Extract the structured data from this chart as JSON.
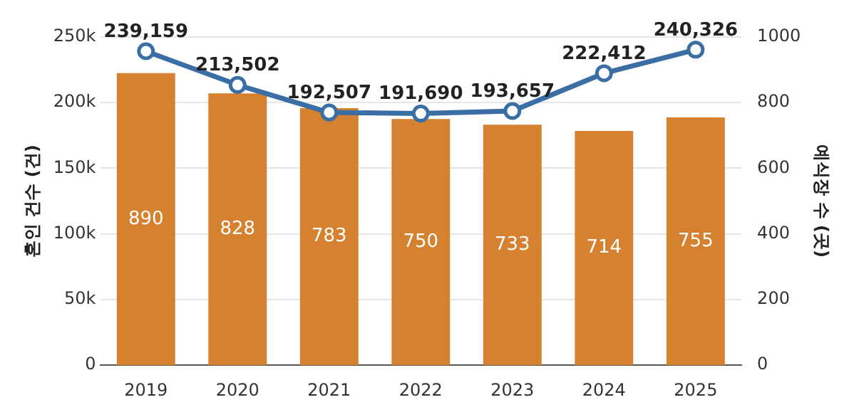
{
  "chart_data": {
    "type": "bar",
    "categories": [
      "2019",
      "2020",
      "2021",
      "2022",
      "2023",
      "2024",
      "2025"
    ],
    "series": [
      {
        "axis": "y2",
        "color": "#d5812f",
        "values": [
          890,
          828,
          783,
          750,
          733,
          714,
          755
        ],
        "value_labels": [
          "890",
          "828",
          "783",
          "750",
          "733",
          "714",
          "755"
        ]
      },
      {
        "type": "line",
        "axis": "y",
        "color": "#3a6ea5",
        "values": [
          239159,
          213502,
          192507,
          191690,
          193657,
          222412,
          240326
        ],
        "value_labels": [
          "239,159",
          "213,502",
          "192,507",
          "191,690",
          "193,657",
          "222,412",
          "240,326"
        ]
      }
    ],
    "ylabel": "혼인 건수 (건)",
    "y2label": "예식장 수 (곳)",
    "ylim": [
      0,
      250000
    ],
    "yticks": [
      {
        "value": 0,
        "label": "0"
      },
      {
        "value": 50000,
        "label": "50k"
      },
      {
        "value": 100000,
        "label": "100k"
      },
      {
        "value": 150000,
        "label": "150k"
      },
      {
        "value": 200000,
        "label": "200k"
      },
      {
        "value": 250000,
        "label": "250k"
      }
    ],
    "y2lim": [
      0,
      1000
    ],
    "y2ticks": [
      0,
      200,
      400,
      600,
      800,
      1000
    ],
    "grid": "y",
    "marker": "circle",
    "legend": false
  }
}
